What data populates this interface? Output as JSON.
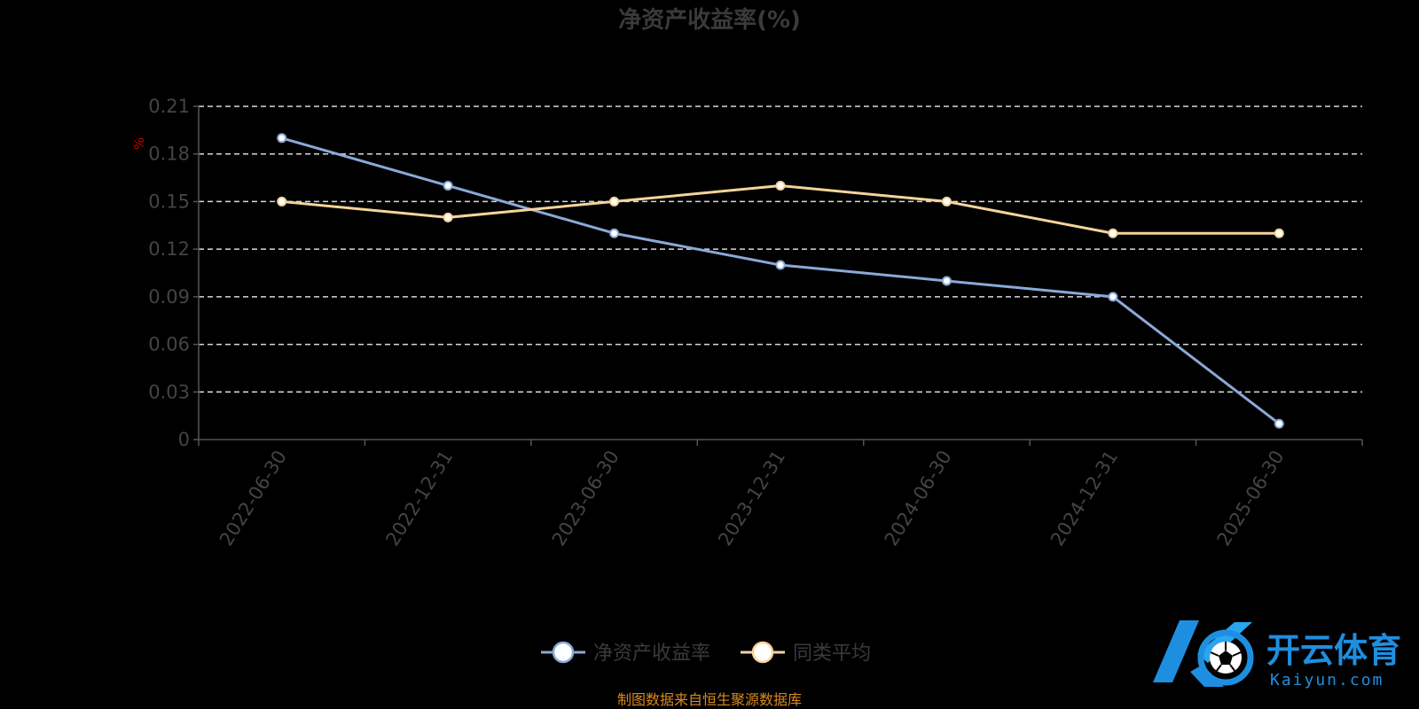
{
  "chart_data": {
    "type": "line",
    "title": "净资产收益率(%)",
    "unit_label": "%",
    "categories": [
      "2022-06-30",
      "2022-12-31",
      "2023-06-30",
      "2023-12-31",
      "2024-06-30",
      "2024-12-31",
      "2025-06-30"
    ],
    "y_ticks": [
      "0",
      "0.03",
      "0.06",
      "0.09",
      "0.12",
      "0.15",
      "0.18",
      "0.21"
    ],
    "ylim": [
      0,
      0.21
    ],
    "grid": true,
    "legend_position": "bottom",
    "series": [
      {
        "name": "净资产收益率",
        "color": "#8aa9d8",
        "values": [
          0.19,
          0.16,
          0.13,
          0.11,
          0.1,
          0.09,
          0.01
        ]
      },
      {
        "name": "同类平均",
        "color": "#f5d49a",
        "values": [
          0.15,
          0.14,
          0.15,
          0.16,
          0.15,
          0.13,
          0.13
        ]
      }
    ]
  },
  "source_note": "制图数据来自恒生聚源数据库",
  "watermark": {
    "brand_cn": "开云体育",
    "brand_en": "Kaiyun.com",
    "logo_icon": "kaiyun-k-soccer-ball-logo",
    "color": "#1e8fe0"
  }
}
